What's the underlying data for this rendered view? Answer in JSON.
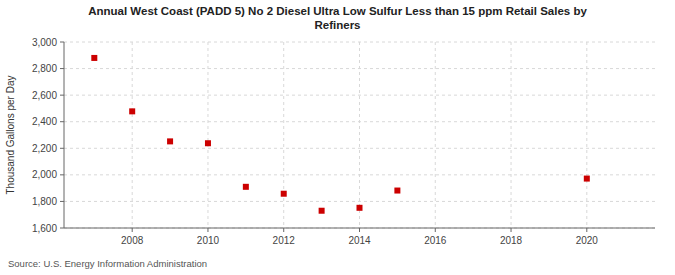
{
  "chart_data": {
    "type": "scatter",
    "title": "Annual West Coast (PADD 5) No 2 Diesel Ultra Low Sulfur Less than 15 ppm Retail Sales by\nRefiners",
    "ylabel": "Thousand Gallons per Day",
    "source": "Source: U.S. Energy Information Administration",
    "x": [
      2007,
      2008,
      2009,
      2010,
      2011,
      2012,
      2013,
      2014,
      2015,
      2020
    ],
    "values": [
      2880,
      2478,
      2252,
      2238,
      1910,
      1858,
      1730,
      1752,
      1882,
      1972
    ],
    "color": "#cc0000",
    "marker": "square",
    "xlim": [
      2006.2,
      2021.8
    ],
    "xticks": [
      2008,
      2010,
      2012,
      2014,
      2016,
      2018,
      2020
    ],
    "ylim": [
      1600,
      3000
    ],
    "yticks": [
      {
        "value": 1600,
        "label": "1,600"
      },
      {
        "value": 1800,
        "label": "1,800"
      },
      {
        "value": 2000,
        "label": "2,000"
      },
      {
        "value": 2200,
        "label": "2,200"
      },
      {
        "value": 2400,
        "label": "2,400"
      },
      {
        "value": 2600,
        "label": "2,600"
      },
      {
        "value": 2800,
        "label": "2,800"
      },
      {
        "value": 3000,
        "label": "3,000"
      }
    ],
    "grid": true
  }
}
